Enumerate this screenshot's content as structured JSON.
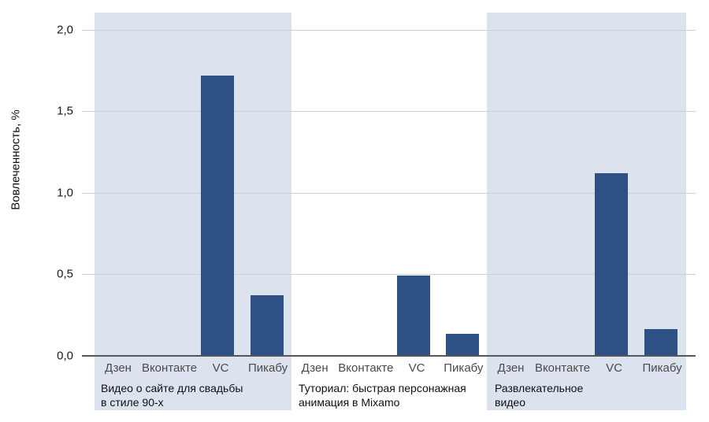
{
  "chart_data": {
    "type": "bar",
    "title": "",
    "ylabel": "Вовлеченность, %",
    "xlabel": "",
    "ylim": [
      0,
      2.0
    ],
    "yticks": [
      2.0,
      1.5,
      1.0,
      0.5,
      0.0
    ],
    "ytick_labels": [
      "2,0",
      "1,5",
      "1,0",
      "0,5",
      "0,0"
    ],
    "grid": true,
    "categories": [
      "Дзен",
      "Вконтакте",
      "VC",
      "Пикабу"
    ],
    "groups": [
      {
        "label": "Видео о сайте для свадьбы в стиле 90-х",
        "label_lines": [
          "Видео о сайте для свадьбы",
          "в стиле 90-х"
        ],
        "shaded": true,
        "values": [
          0,
          0,
          1.72,
          0.37
        ]
      },
      {
        "label": "Туториал: быстрая персонажная анимация в Mixamo",
        "label_lines": [
          "Туториал: быстрая персонажная",
          "анимация в Mixamo"
        ],
        "shaded": false,
        "values": [
          0,
          0,
          0.49,
          0.13
        ]
      },
      {
        "label": "Развлекательное видео",
        "label_lines": [
          "Развлекательное",
          "видео"
        ],
        "shaded": true,
        "values": [
          0,
          0,
          1.12,
          0.16
        ]
      }
    ],
    "colors": {
      "bar": "#2e5185",
      "panel": "#dce3ef",
      "gridline": "#cbcfd6",
      "axis": "#54575c"
    }
  }
}
